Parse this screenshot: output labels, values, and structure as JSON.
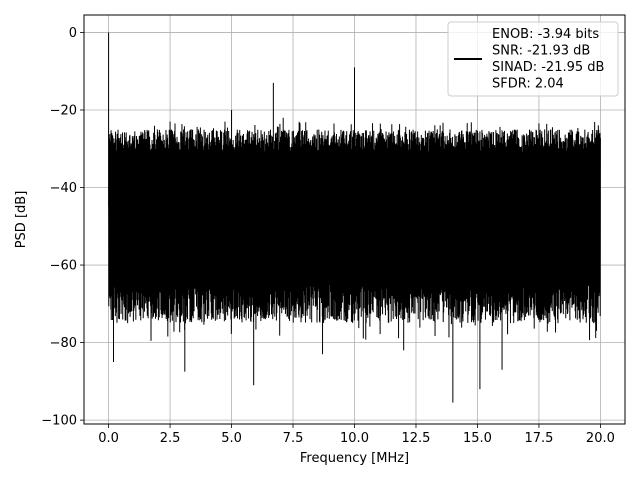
{
  "chart_data": {
    "type": "line",
    "title": "",
    "xlabel": "Frequency [MHz]",
    "ylabel": "PSD [dB]",
    "xlim": [
      -1.0,
      21.0
    ],
    "ylim": [
      -101,
      4.5
    ],
    "xticks": [
      0.0,
      2.5,
      5.0,
      7.5,
      10.0,
      12.5,
      15.0,
      17.5,
      20.0
    ],
    "xtick_labels": [
      "0.0",
      "2.5",
      "5.0",
      "7.5",
      "10.0",
      "12.5",
      "15.0",
      "17.5",
      "20.0"
    ],
    "yticks": [
      0,
      -20,
      -40,
      -60,
      -80,
      -100
    ],
    "ytick_labels": [
      "0",
      "−20",
      "−40",
      "−60",
      "−80",
      "−100"
    ],
    "grid": true,
    "legend_position": "top-right",
    "series": [
      {
        "name": "",
        "color": "#000000",
        "noise_floor_top_db": -28,
        "noise_floor_bottom_db": -65,
        "x_range": [
          0.0,
          20.0
        ],
        "spikes": [
          {
            "x": 0.0,
            "y": 0.0
          },
          {
            "x": 2.5,
            "y": -23.0
          },
          {
            "x": 5.0,
            "y": -20.0
          },
          {
            "x": 6.7,
            "y": -13.0
          },
          {
            "x": 10.0,
            "y": -9.0
          },
          {
            "x": 7.1,
            "y": -22.0
          }
        ],
        "dips": [
          {
            "x": 0.2,
            "y": -85.0
          },
          {
            "x": 3.1,
            "y": -87.5
          },
          {
            "x": 5.9,
            "y": -91.0
          },
          {
            "x": 14.0,
            "y": -95.5
          },
          {
            "x": 15.1,
            "y": -92.0
          },
          {
            "x": 16.0,
            "y": -87.0
          },
          {
            "x": 12.0,
            "y": -82.0
          },
          {
            "x": 8.7,
            "y": -83.0
          }
        ]
      }
    ],
    "legend_entries": [
      "ENOB: -3.94 bits",
      "SNR: -21.93 dB",
      "SINAD: -21.95 dB",
      "SFDR: 2.04"
    ]
  }
}
